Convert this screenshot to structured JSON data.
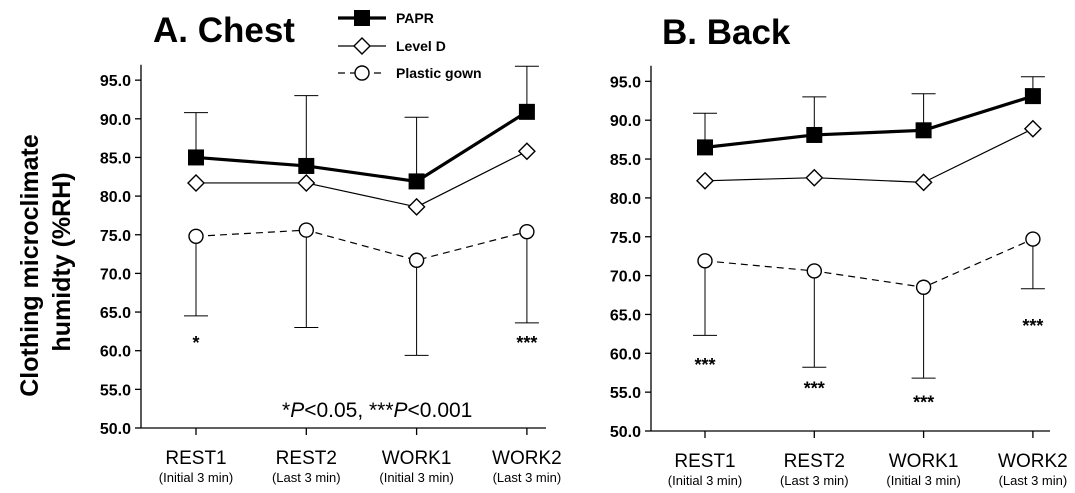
{
  "colors": {
    "ink": "#000000",
    "background": "#ffffff"
  },
  "ylabel_lines": [
    "Clothing microclimate",
    "humidty (%RH)"
  ],
  "legend": {
    "entries": [
      {
        "label": "PAPR",
        "marker": "filled-square",
        "line": "thick-solid"
      },
      {
        "label": "Level D",
        "marker": "open-diamond",
        "line": "thin-solid"
      },
      {
        "label": "Plastic gown",
        "marker": "open-circle",
        "line": "dashed"
      }
    ]
  },
  "chart_data": [
    {
      "type": "line",
      "title": "A. Chest",
      "ylim": [
        50,
        97
      ],
      "yticks": [
        "50.0",
        "55.0",
        "60.0",
        "65.0",
        "70.0",
        "75.0",
        "80.0",
        "85.0",
        "90.0",
        "95.0"
      ],
      "categories": [
        "REST1",
        "REST2",
        "WORK1",
        "WORK2"
      ],
      "subcategories": [
        "(Initial 3 min)",
        "(Last 3 min)",
        "(Initial 3 min)",
        "(Last 3 min)"
      ],
      "series": [
        {
          "name": "PAPR",
          "values": [
            85.0,
            83.9,
            81.9,
            90.9
          ],
          "error_plus": [
            5.8,
            9.1,
            8.3,
            5.9
          ],
          "error_minus": [
            null,
            null,
            null,
            null
          ]
        },
        {
          "name": "Level D",
          "values": [
            81.7,
            81.7,
            78.6,
            85.8
          ],
          "error_plus": [
            null,
            null,
            null,
            null
          ],
          "error_minus": [
            null,
            null,
            null,
            null
          ]
        },
        {
          "name": "Plastic gown",
          "values": [
            74.8,
            75.6,
            71.7,
            75.4
          ],
          "error_plus": [
            null,
            null,
            null,
            null
          ],
          "error_minus": [
            10.3,
            12.6,
            12.3,
            11.8
          ]
        }
      ],
      "significance": [
        "*",
        "",
        "",
        "***"
      ],
      "significance_y": [
        61.5,
        null,
        null,
        61.5
      ],
      "footnote_parts": [
        "*",
        "P",
        "<0.05, ***",
        "P",
        "<0.001"
      ]
    },
    {
      "type": "line",
      "title": "B. Back",
      "ylim": [
        50,
        97
      ],
      "yticks": [
        "50.0",
        "55.0",
        "60.0",
        "65.0",
        "70.0",
        "75.0",
        "80.0",
        "85.0",
        "90.0",
        "95.0"
      ],
      "categories": [
        "REST1",
        "REST2",
        "WORK1",
        "WORK2"
      ],
      "subcategories": [
        "(Initial 3 min)",
        "(Last 3 min)",
        "(Initial 3 min)",
        "(Last 3 min)"
      ],
      "series": [
        {
          "name": "PAPR",
          "values": [
            86.5,
            88.1,
            88.7,
            93.1
          ],
          "error_plus": [
            4.4,
            4.9,
            4.7,
            2.5
          ],
          "error_minus": [
            null,
            null,
            null,
            null
          ]
        },
        {
          "name": "Level D",
          "values": [
            82.2,
            82.6,
            82.0,
            88.9
          ],
          "error_plus": [
            null,
            null,
            null,
            null
          ],
          "error_minus": [
            null,
            null,
            null,
            null
          ]
        },
        {
          "name": "Plastic gown",
          "values": [
            71.9,
            70.6,
            68.5,
            74.7
          ],
          "error_plus": [
            null,
            null,
            null,
            null
          ],
          "error_minus": [
            9.6,
            12.4,
            11.7,
            6.4
          ]
        }
      ],
      "significance": [
        "***",
        "***",
        "***",
        "***"
      ],
      "significance_y": [
        59.0,
        56.0,
        54.2,
        64.0
      ],
      "footnote_parts": []
    }
  ]
}
